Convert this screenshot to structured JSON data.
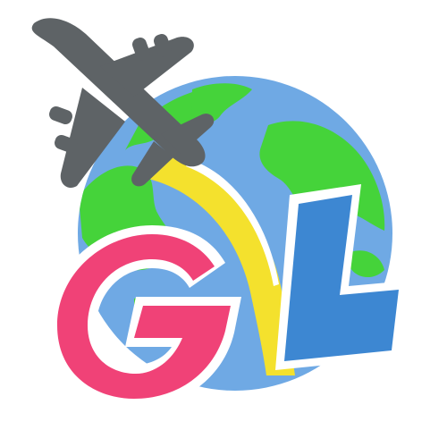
{
  "logo": {
    "letters": [
      "G",
      "L"
    ],
    "colors": {
      "ocean": "#6fa9e4",
      "land": "#45d33a",
      "airplane": "#5e6366",
      "trail": "#f4e12d",
      "trail_highlight": "#ffffff",
      "letter_g": "#f04277",
      "letter_l": "#3d87d2",
      "outline": "#ffffff"
    },
    "icons": [
      "airplane-icon",
      "globe-icon"
    ]
  }
}
